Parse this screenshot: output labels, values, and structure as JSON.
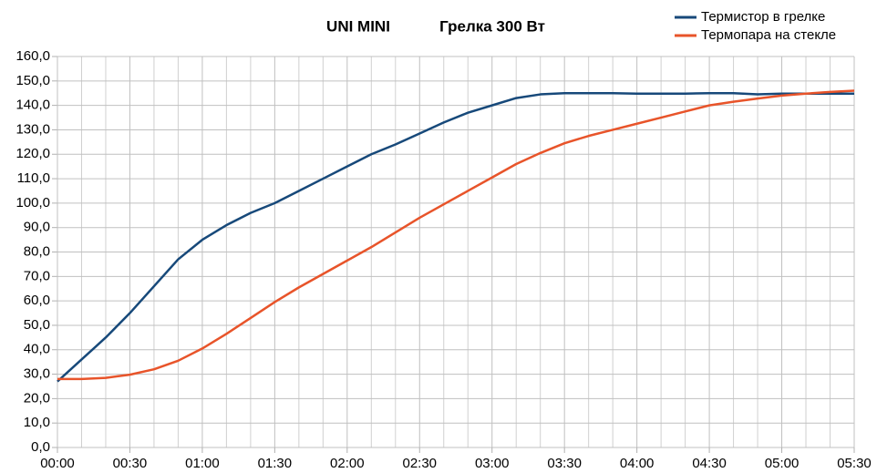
{
  "chart_data": {
    "type": "line",
    "title": "UNI MINI",
    "subtitle": "Грелка 300 Вт",
    "x": [
      0,
      10,
      20,
      30,
      40,
      50,
      60,
      70,
      80,
      90,
      100,
      110,
      120,
      130,
      140,
      150,
      160,
      170,
      180,
      190,
      200,
      210,
      220,
      230,
      240,
      250,
      260,
      270,
      280,
      290,
      300,
      310,
      320,
      330
    ],
    "series": [
      {
        "name": "Термистор в грелке",
        "color": "#17497a",
        "values": [
          27,
          36,
          45,
          55,
          66,
          77,
          85,
          91,
          96,
          100,
          105,
          110,
          115,
          120,
          124,
          128.5,
          133,
          137,
          140,
          143,
          144.5,
          145,
          145,
          145,
          144.8,
          144.8,
          144.8,
          145,
          145,
          144.5,
          144.8,
          144.8,
          144.8,
          144.8
        ]
      },
      {
        "name": "Термопара на стекле",
        "color": "#e8542a",
        "values": [
          28,
          28,
          28.5,
          29.8,
          32,
          35.5,
          40.5,
          46.5,
          53,
          59.5,
          65.5,
          71,
          76.5,
          82,
          88,
          94,
          99.5,
          105,
          110.5,
          116,
          120.5,
          124.5,
          127.5,
          130,
          132.5,
          135,
          137.5,
          140,
          141.5,
          142.8,
          144,
          144.8,
          145.5,
          146
        ]
      }
    ],
    "xlim": [
      0,
      330
    ],
    "xticks": [
      {
        "value": 0,
        "label": "00:00"
      },
      {
        "value": 30,
        "label": "00:30"
      },
      {
        "value": 60,
        "label": "01:00"
      },
      {
        "value": 90,
        "label": "01:30"
      },
      {
        "value": 120,
        "label": "02:00"
      },
      {
        "value": 150,
        "label": "02:30"
      },
      {
        "value": 180,
        "label": "03:00"
      },
      {
        "value": 210,
        "label": "03:30"
      },
      {
        "value": 240,
        "label": "04:00"
      },
      {
        "value": 270,
        "label": "04:30"
      },
      {
        "value": 300,
        "label": "05:00"
      },
      {
        "value": 330,
        "label": "05:30"
      }
    ],
    "xminorticks": [
      10,
      20,
      40,
      50,
      70,
      80,
      100,
      110,
      130,
      140,
      160,
      170,
      190,
      200,
      220,
      230,
      250,
      260,
      280,
      290,
      310,
      320
    ],
    "ylim": [
      0,
      160
    ],
    "yticks": [
      {
        "value": 0,
        "label": "0,0"
      },
      {
        "value": 10,
        "label": "10,0"
      },
      {
        "value": 20,
        "label": "20,0"
      },
      {
        "value": 30,
        "label": "30,0"
      },
      {
        "value": 40,
        "label": "40,0"
      },
      {
        "value": 50,
        "label": "50,0"
      },
      {
        "value": 60,
        "label": "60,0"
      },
      {
        "value": 70,
        "label": "70,0"
      },
      {
        "value": 80,
        "label": "80,0"
      },
      {
        "value": 90,
        "label": "90,0"
      },
      {
        "value": 100,
        "label": "100,0"
      },
      {
        "value": 110,
        "label": "110,0"
      },
      {
        "value": 120,
        "label": "120,0"
      },
      {
        "value": 130,
        "label": "130,0"
      },
      {
        "value": 140,
        "label": "140,0"
      },
      {
        "value": 150,
        "label": "150,0"
      },
      {
        "value": 160,
        "label": "160,0"
      }
    ],
    "grid": true,
    "legend": "top-right"
  }
}
